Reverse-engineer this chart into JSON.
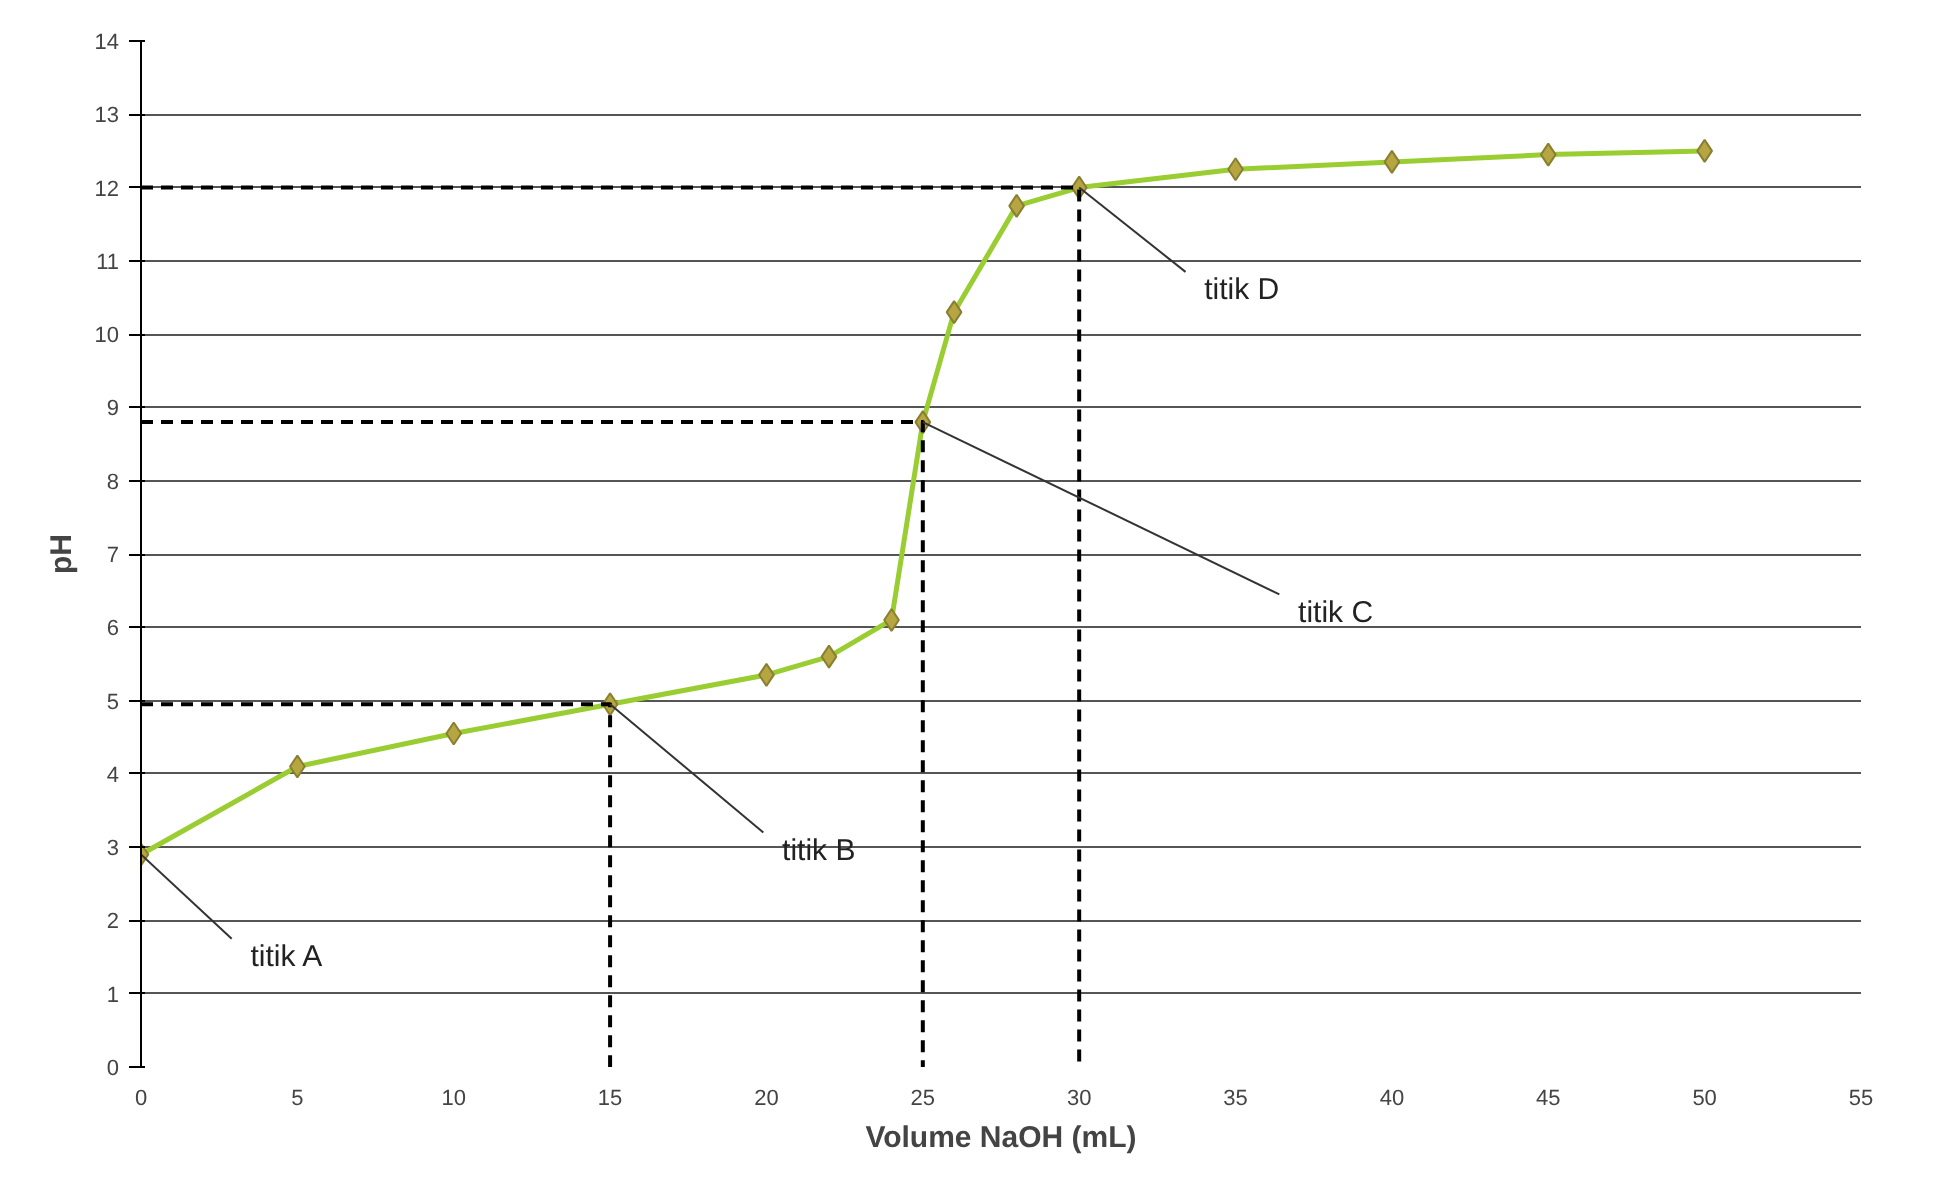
{
  "chart_data": {
    "type": "line",
    "xlabel": "Volume NaOH (mL)",
    "ylabel": "pH",
    "xlim": [
      0,
      55
    ],
    "ylim": [
      0,
      14
    ],
    "xticks": [
      0,
      5,
      10,
      15,
      20,
      25,
      30,
      35,
      40,
      45,
      50,
      55
    ],
    "yticks": [
      0,
      1,
      2,
      3,
      4,
      5,
      6,
      7,
      8,
      9,
      10,
      11,
      12,
      13,
      14
    ],
    "grid": "y",
    "series": [
      {
        "color": "#9acd32",
        "marker": "diamond",
        "line_style": "solid",
        "x": [
          0,
          5,
          10,
          15,
          20,
          22,
          24,
          25,
          26,
          28,
          30,
          35,
          40,
          45,
          50
        ],
        "values": [
          2.9,
          4.1,
          4.55,
          4.95,
          5.35,
          5.6,
          6.1,
          8.8,
          10.3,
          11.75,
          12.0,
          12.25,
          12.35,
          12.45,
          12.5
        ]
      },
      {
        "color": "#000000",
        "marker": "none",
        "line_style": "dashed",
        "x": [
          0,
          15,
          15
        ],
        "values": [
          4.95,
          4.95,
          0
        ]
      },
      {
        "color": "#000000",
        "marker": "none",
        "line_style": "dashed",
        "x": [
          0,
          25,
          25
        ],
        "values": [
          8.8,
          8.8,
          0
        ]
      },
      {
        "color": "#000000",
        "marker": "none",
        "line_style": "dashed",
        "x": [
          0,
          30,
          30
        ],
        "values": [
          12.0,
          12.0,
          0
        ]
      }
    ],
    "annotations": [
      {
        "text": "titik A",
        "x": 0,
        "y": 2.9
      },
      {
        "text": "titik B",
        "x": 15,
        "y": 4.95
      },
      {
        "text": "titik C",
        "x": 25,
        "y": 8.8
      },
      {
        "text": "titik D",
        "x": 30,
        "y": 12.0
      }
    ]
  }
}
